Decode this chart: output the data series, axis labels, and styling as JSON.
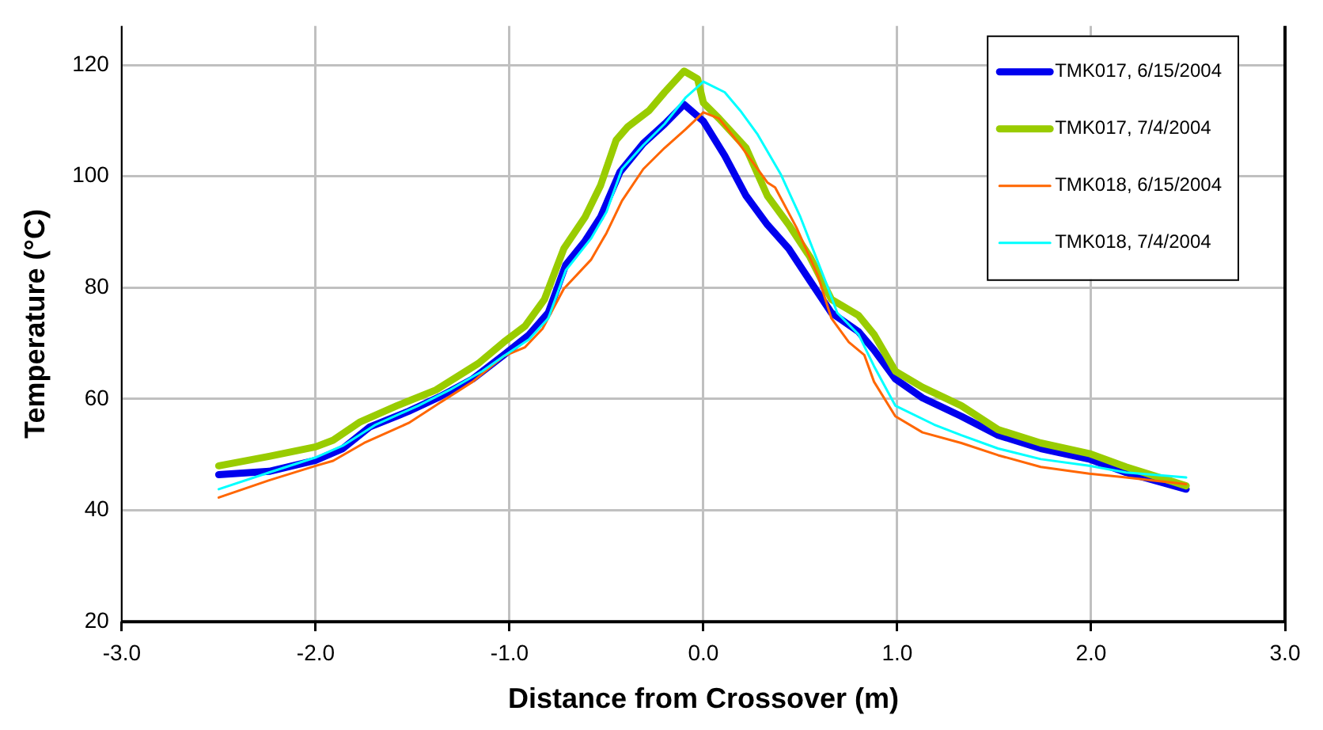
{
  "chart_data": {
    "type": "line",
    "xlabel": "Distance from Crossover (m)",
    "ylabel": "Temperature (°C)",
    "xlim": [
      -3,
      3
    ],
    "xticks": [
      {
        "value": -3,
        "label": "-3.0"
      },
      {
        "value": -2,
        "label": "-2.0"
      },
      {
        "value": -1,
        "label": "-1.0"
      },
      {
        "value": 0,
        "label": "0.0"
      },
      {
        "value": 1,
        "label": "1.0"
      },
      {
        "value": 2,
        "label": "2.0"
      },
      {
        "value": 3,
        "label": "3.0"
      }
    ],
    "ylim": [
      20,
      127
    ],
    "yticks": [
      20,
      40,
      60,
      80,
      100,
      120
    ],
    "grid": true,
    "legend": "top right",
    "marker": "none",
    "line_style": "solid",
    "series": [
      {
        "name": "TMK017, 6/15/2004",
        "color": "#0000ee",
        "x": [
          -2.5,
          -2.24,
          -2.0,
          -1.86,
          -1.72,
          -1.52,
          -1.36,
          -1.19,
          -1.03,
          -0.9,
          -0.8,
          -0.71,
          -0.61,
          -0.53,
          -0.43,
          -0.31,
          -0.2,
          -0.1,
          0.0,
          0.11,
          0.22,
          0.33,
          0.44,
          0.55,
          0.66,
          0.8,
          0.88,
          0.99,
          1.13,
          1.33,
          1.52,
          1.74,
          1.99,
          2.18,
          2.49
        ],
        "values": [
          46.4,
          47.0,
          49.0,
          51.1,
          55.0,
          57.8,
          60.4,
          63.6,
          67.9,
          71.5,
          75.5,
          84.1,
          88.4,
          92.7,
          100.8,
          105.9,
          109.4,
          112.9,
          109.9,
          103.7,
          96.5,
          91.3,
          87.0,
          81.2,
          75.5,
          72.1,
          68.8,
          63.6,
          60.2,
          56.9,
          53.5,
          51.1,
          49.2,
          46.8,
          43.8
        ]
      },
      {
        "name": "TMK017, 7/4/2004",
        "color": "#99cc00",
        "x": [
          -2.5,
          -2.24,
          -2.0,
          -1.91,
          -1.77,
          -1.58,
          -1.38,
          -1.16,
          -1.03,
          -0.92,
          -0.82,
          -0.72,
          -0.61,
          -0.53,
          -0.45,
          -0.39,
          -0.28,
          -0.2,
          -0.1,
          -0.03,
          0.0,
          0.08,
          0.22,
          0.33,
          0.44,
          0.55,
          0.66,
          0.8,
          0.88,
          0.99,
          1.13,
          1.33,
          1.52,
          1.74,
          1.99,
          2.18,
          2.49
        ],
        "values": [
          48.0,
          49.7,
          51.4,
          52.6,
          55.9,
          58.8,
          61.6,
          66.4,
          70.2,
          73.1,
          77.9,
          87.0,
          92.7,
          98.4,
          106.5,
          108.9,
          111.8,
          115.1,
          118.9,
          117.5,
          113.2,
          110.4,
          105.1,
          96.5,
          91.3,
          85.5,
          77.9,
          75.0,
          71.6,
          65.0,
          62.1,
          58.8,
          54.5,
          52.1,
          50.2,
          47.8,
          44.4
        ]
      },
      {
        "name": "TMK018, 6/15/2004",
        "color": "#ff6600",
        "x": [
          -2.5,
          -2.24,
          -2.0,
          -1.91,
          -1.75,
          -1.52,
          -1.36,
          -1.19,
          -1.03,
          -0.92,
          -0.83,
          -0.72,
          -0.58,
          -0.5,
          -0.42,
          -0.31,
          -0.2,
          -0.09,
          0.0,
          0.08,
          0.19,
          0.33,
          0.37,
          0.48,
          0.59,
          0.66,
          0.75,
          0.83,
          0.88,
          0.99,
          1.13,
          1.33,
          1.52,
          1.74,
          1.99,
          2.18,
          2.49
        ],
        "values": [
          42.3,
          45.4,
          48.0,
          48.9,
          52.1,
          55.7,
          59.3,
          63.1,
          67.7,
          69.3,
          72.6,
          79.8,
          85.0,
          89.8,
          95.6,
          101.3,
          105.1,
          108.5,
          111.5,
          110.4,
          105.6,
          98.9,
          98.0,
          90.8,
          82.2,
          74.5,
          70.2,
          67.9,
          63.1,
          56.9,
          54.0,
          52.1,
          49.9,
          47.8,
          46.6,
          45.9,
          44.7
        ]
      },
      {
        "name": "TMK018, 7/4/2004",
        "color": "#00ffff",
        "x": [
          -2.5,
          -2.24,
          -2.0,
          -1.86,
          -1.69,
          -1.47,
          -1.31,
          -1.14,
          -1.03,
          -0.9,
          -0.8,
          -0.71,
          -0.58,
          -0.5,
          -0.42,
          -0.31,
          -0.2,
          -0.09,
          0.0,
          0.11,
          0.19,
          0.28,
          0.4,
          0.5,
          0.64,
          0.69,
          0.8,
          0.88,
          0.99,
          1.19,
          1.33,
          1.52,
          1.74,
          1.99,
          2.18,
          2.49
        ],
        "values": [
          43.8,
          46.8,
          49.5,
          51.6,
          55.4,
          58.8,
          61.6,
          65.0,
          67.7,
          70.7,
          74.5,
          83.1,
          88.8,
          93.6,
          101.3,
          105.6,
          109.4,
          114.2,
          117.0,
          115.1,
          111.8,
          107.5,
          100.3,
          92.7,
          80.2,
          75.5,
          71.6,
          65.9,
          58.8,
          55.4,
          53.5,
          51.1,
          49.2,
          48.0,
          46.8,
          45.9
        ]
      }
    ]
  }
}
